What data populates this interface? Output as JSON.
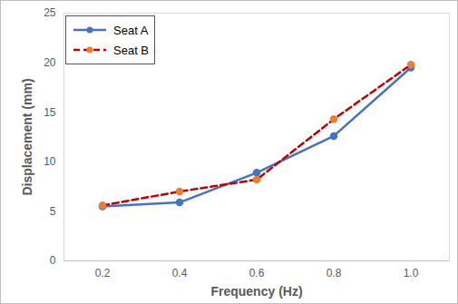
{
  "chart_data": {
    "type": "line",
    "x_label": "Frequency (Hz)",
    "y_label": "Displacement (mm)",
    "x": [
      0.2,
      0.4,
      0.6,
      0.8,
      1.0
    ],
    "series": [
      {
        "name": "Seat A",
        "color": "#4472c4",
        "values": [
          5.5,
          5.9,
          8.9,
          12.6,
          19.5
        ],
        "marker": "circle",
        "line_style": "solid"
      },
      {
        "name": "Seat B",
        "color": "#c00000",
        "values": [
          5.6,
          7.0,
          8.2,
          14.3,
          19.8
        ],
        "marker": "circle",
        "line_style": "dashed"
      }
    ],
    "xlim": [
      0.1,
      1.1
    ],
    "xticks": [
      0.2,
      0.4,
      0.6,
      0.8,
      {
        "value": 1,
        "label": "1.0"
      }
    ],
    "ylim": [
      0,
      25
    ],
    "yticks": [
      0,
      5,
      10,
      15,
      20,
      25
    ],
    "grid": false,
    "legend": "top-left"
  }
}
